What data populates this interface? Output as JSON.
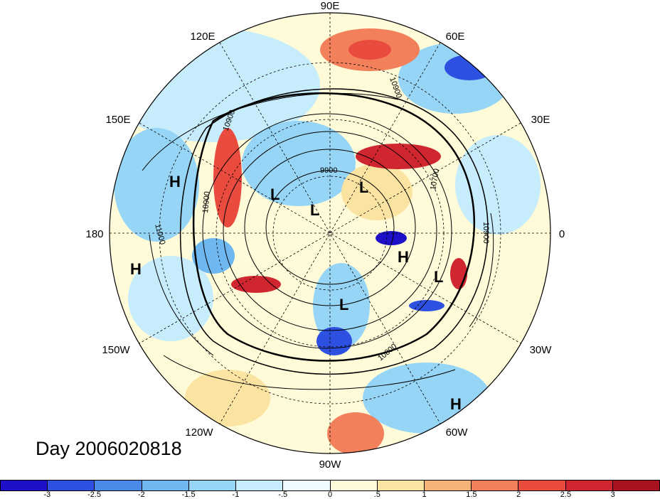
{
  "map": {
    "title": "Day 2006020818",
    "longitude_labels": [
      "90E",
      "120E",
      "60E",
      "150E",
      "30E",
      "180",
      "0",
      "150W",
      "30W",
      "120W",
      "60W",
      "90W"
    ],
    "contour_labels": [
      "10900",
      "10900",
      "9900",
      "10700",
      "10900",
      "10800",
      "10900",
      "11000"
    ],
    "pressure_centers": [
      "H",
      "L",
      "L",
      "L",
      "H",
      "L",
      "H",
      "L",
      "H"
    ]
  },
  "colorbar": {
    "colors": [
      "#1e10c8",
      "#2d50e0",
      "#4a8ae8",
      "#6eb7f0",
      "#96d5f5",
      "#c7ecfb",
      "#eefcff",
      "#fffbd8",
      "#fbe3a2",
      "#f7b278",
      "#f2805a",
      "#ea4b3f",
      "#cf2630",
      "#a8111e"
    ],
    "tick_labels": [
      "-3",
      "-2.5",
      "-2",
      "-1.5",
      "-1",
      "-.5",
      "0",
      ".5",
      "1",
      "1.5",
      "2",
      "2.5",
      "3"
    ]
  }
}
